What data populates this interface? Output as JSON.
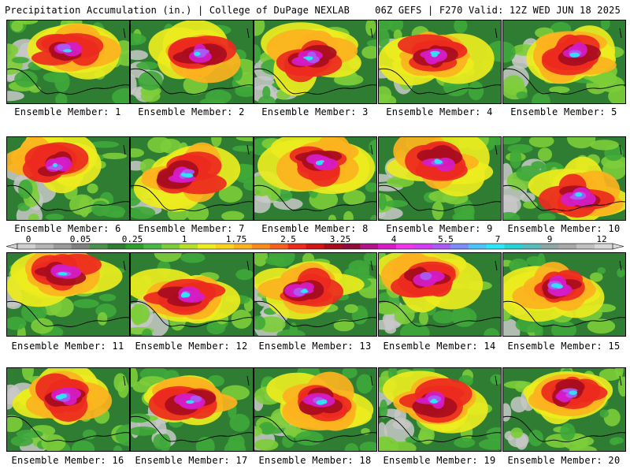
{
  "header": {
    "title_left": "Precipitation Accumulation (in.) | College of DuPage NEXLAB",
    "title_right": "06Z GEFS | F270 Valid: 12Z WED JUN 18 2025"
  },
  "colorbar": {
    "labels": [
      "0",
      "0.05",
      "0.25",
      "1",
      "1.75",
      "2.5",
      "3.25",
      "4",
      "5.5",
      "7",
      "9",
      "12"
    ],
    "colors": [
      "#d0d0d0",
      "#b4b4b4",
      "#9a9a9a",
      "#808080",
      "#4d8f4d",
      "#2e7d32",
      "#2f9e2f",
      "#46b846",
      "#7dcd3a",
      "#b6e02a",
      "#ecec1e",
      "#f9d21e",
      "#fcb21e",
      "#f98a1e",
      "#f65f1e",
      "#ec2a1e",
      "#cf1515",
      "#a80d1e",
      "#8e0b3c",
      "#b0128a",
      "#d61cc7",
      "#ee34ec",
      "#d23cf2",
      "#aa5af5",
      "#7c8cf8",
      "#4cc2fa",
      "#2de6f7",
      "#28d2d2",
      "#56bcbc",
      "#8fa6a6",
      "#a8a8a8",
      "#c0c0c0",
      "#d8d8d8"
    ],
    "accent_map_colors": {
      "light_gray": "#c8c8c8",
      "dark_green": "#2e7d32",
      "green": "#3fa83a",
      "light_green": "#7dcd3a",
      "yellow": "#ecec1e",
      "orange": "#fcb21e",
      "red": "#ec2a1e",
      "dark_red": "#a80d1e",
      "magenta": "#d61cc7",
      "purple": "#aa5af5",
      "cyan": "#2de6f7",
      "teal": "#28d2d2"
    }
  },
  "members": [
    {
      "label": "Ensemble Member: 1"
    },
    {
      "label": "Ensemble Member: 2"
    },
    {
      "label": "Ensemble Member: 3"
    },
    {
      "label": "Ensemble Member: 4"
    },
    {
      "label": "Ensemble Member: 5"
    },
    {
      "label": "Ensemble Member: 6"
    },
    {
      "label": "Ensemble Member: 7"
    },
    {
      "label": "Ensemble Member: 8"
    },
    {
      "label": "Ensemble Member: 9"
    },
    {
      "label": "Ensemble Member: 10"
    },
    {
      "label": "Ensemble Member: 11"
    },
    {
      "label": "Ensemble Member: 12"
    },
    {
      "label": "Ensemble Member: 13"
    },
    {
      "label": "Ensemble Member: 14"
    },
    {
      "label": "Ensemble Member: 15"
    },
    {
      "label": "Ensemble Member: 16"
    },
    {
      "label": "Ensemble Member: 17"
    },
    {
      "label": "Ensemble Member: 18"
    },
    {
      "label": "Ensemble Member: 19"
    },
    {
      "label": "Ensemble Member: 20"
    }
  ]
}
